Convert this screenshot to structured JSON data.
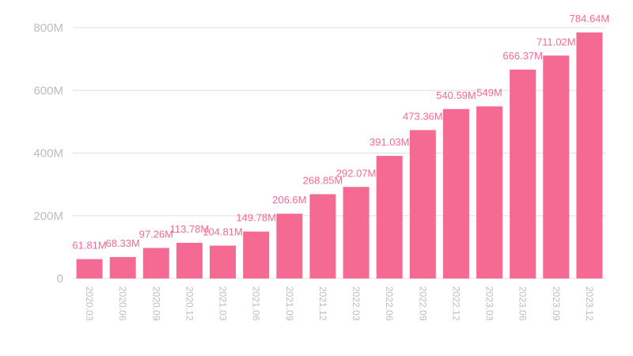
{
  "chart_data": {
    "type": "bar",
    "title": "",
    "xlabel": "",
    "ylabel": "",
    "categories": [
      "2020.03",
      "2020.06",
      "2020.09",
      "2020.12",
      "2021.03",
      "2021.06",
      "2021.09",
      "2021.12",
      "2022.03",
      "2022.06",
      "2022.09",
      "2022.12",
      "2023.03",
      "2023.06",
      "2023.09",
      "2023.12"
    ],
    "values": [
      61.81,
      68.33,
      97.26,
      113.78,
      104.81,
      149.78,
      206.6,
      268.85,
      292.07,
      391.03,
      473.36,
      540.59,
      549,
      666.37,
      711.02,
      784.64
    ],
    "data_labels": [
      "61.81M",
      "68.33M",
      "97.26M",
      "113.78M",
      "104.81M",
      "149.78M",
      "206.6M",
      "268.85M",
      "292.07M",
      "391.03M",
      "473.36M",
      "540.59M",
      "549M",
      "666.37M",
      "711.02M",
      "784.64M"
    ],
    "yticks": [
      0,
      200,
      400,
      600,
      800
    ],
    "ytick_labels": [
      "0",
      "200M",
      "400M",
      "600M",
      "800M"
    ],
    "ylim": [
      0,
      800
    ],
    "grid": true,
    "bar_color": "#f56a93",
    "label_color": "#f56a93"
  }
}
